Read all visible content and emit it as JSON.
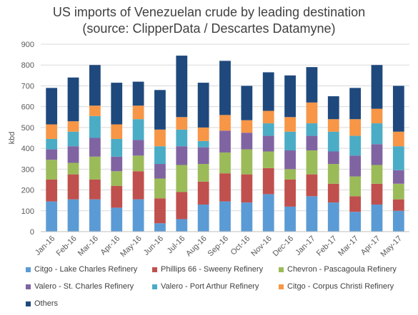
{
  "chart_data": {
    "type": "bar",
    "stacked": true,
    "title_lines": [
      "US imports of Venezuelan crude by leading destination",
      "(source: ClipperData / Descartes Datamyne)"
    ],
    "ylabel": "kbd",
    "xlabel": "",
    "ylim": [
      0,
      900
    ],
    "yticks": [
      0,
      100,
      200,
      300,
      400,
      500,
      600,
      700,
      800,
      900
    ],
    "grid": true,
    "legend_position": "bottom",
    "categories": [
      "Jan-16",
      "Feb-16",
      "Mar-16",
      "Apr-16",
      "May-16",
      "Jun-16",
      "Jul-16",
      "Aug-16",
      "Sep-16",
      "Oct-16",
      "Nov-16",
      "Dec-16",
      "Jan-17",
      "Feb-17",
      "Mar-17",
      "Apr-17",
      "May-17"
    ],
    "series": [
      {
        "name": "Citgo - Lake Charles Refinery",
        "color": "#5b9bd5",
        "values": [
          145,
          155,
          155,
          115,
          155,
          40,
          60,
          130,
          145,
          140,
          180,
          120,
          170,
          140,
          95,
          130,
          100
        ]
      },
      {
        "name": "Phillips 66 - Sweeny Refinery",
        "color": "#c0504d",
        "values": [
          105,
          120,
          95,
          105,
          135,
          120,
          130,
          110,
          135,
          135,
          125,
          130,
          105,
          90,
          75,
          100,
          55
        ]
      },
      {
        "name": "Chevron - Pascagoula Refinery",
        "color": "#9bbb59",
        "values": [
          95,
          55,
          110,
          70,
          75,
          95,
          130,
          85,
          100,
          120,
          80,
          50,
          115,
          95,
          95,
          90,
          75
        ]
      },
      {
        "name": "Valero - St. Charles Refinery",
        "color": "#8064a2",
        "values": [
          50,
          80,
          90,
          70,
          75,
          70,
          90,
          80,
          105,
          80,
          75,
          90,
          70,
          60,
          100,
          100,
          65
        ]
      },
      {
        "name": "Valero - Port Arthur Refinery",
        "color": "#4bacc6",
        "values": [
          50,
          70,
          105,
          85,
          100,
          85,
          80,
          30,
          0,
          0,
          60,
          90,
          60,
          95,
          95,
          100,
          115
        ]
      },
      {
        "name": "Citgo - Corpus Christi Refinery",
        "color": "#f79646",
        "values": [
          70,
          50,
          50,
          70,
          65,
          80,
          60,
          65,
          75,
          60,
          60,
          70,
          100,
          60,
          80,
          70,
          70
        ]
      },
      {
        "name": "Others",
        "color": "#1f497d",
        "values": [
          175,
          210,
          195,
          200,
          115,
          190,
          295,
          215,
          260,
          165,
          185,
          200,
          170,
          110,
          150,
          210,
          220
        ]
      }
    ]
  }
}
